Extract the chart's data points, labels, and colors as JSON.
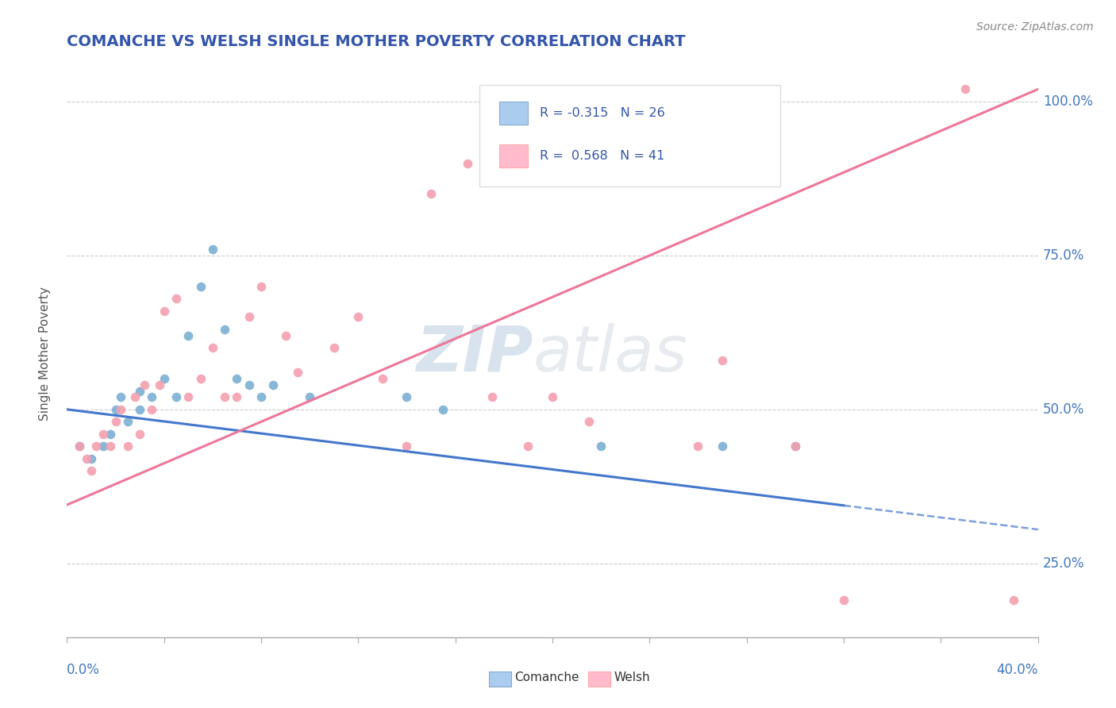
{
  "title": "COMANCHE VS WELSH SINGLE MOTHER POVERTY CORRELATION CHART",
  "source": "Source: ZipAtlas.com",
  "ylabel": "Single Mother Poverty",
  "xlim": [
    0.0,
    0.4
  ],
  "ylim": [
    0.13,
    1.05
  ],
  "y_ticks": [
    0.25,
    0.5,
    0.75,
    1.0
  ],
  "y_tick_labels": [
    "25.0%",
    "50.0%",
    "75.0%",
    "100.0%"
  ],
  "comanche_color": "#7BAFD4",
  "welsh_color": "#F4A0B0",
  "comanche_line_color": "#4477CC",
  "welsh_line_color": "#EE7799",
  "legend_bg": "#FFFFFF",
  "legend_edge": "#DDDDDD",
  "legend_box_comanche": "#AACCEE",
  "legend_box_welsh": "#FFBBCC",
  "R_comanche": -0.315,
  "N_comanche": 26,
  "R_welsh": 0.568,
  "N_welsh": 41,
  "comanche_scatter": [
    [
      0.005,
      0.44
    ],
    [
      0.01,
      0.42
    ],
    [
      0.015,
      0.44
    ],
    [
      0.018,
      0.46
    ],
    [
      0.02,
      0.5
    ],
    [
      0.022,
      0.52
    ],
    [
      0.025,
      0.48
    ],
    [
      0.03,
      0.5
    ],
    [
      0.03,
      0.53
    ],
    [
      0.035,
      0.52
    ],
    [
      0.04,
      0.55
    ],
    [
      0.045,
      0.52
    ],
    [
      0.05,
      0.62
    ],
    [
      0.055,
      0.7
    ],
    [
      0.06,
      0.76
    ],
    [
      0.065,
      0.63
    ],
    [
      0.07,
      0.55
    ],
    [
      0.075,
      0.54
    ],
    [
      0.08,
      0.52
    ],
    [
      0.085,
      0.54
    ],
    [
      0.1,
      0.52
    ],
    [
      0.14,
      0.52
    ],
    [
      0.155,
      0.5
    ],
    [
      0.22,
      0.44
    ],
    [
      0.27,
      0.44
    ],
    [
      0.3,
      0.44
    ]
  ],
  "welsh_scatter": [
    [
      0.005,
      0.44
    ],
    [
      0.008,
      0.42
    ],
    [
      0.01,
      0.4
    ],
    [
      0.012,
      0.44
    ],
    [
      0.015,
      0.46
    ],
    [
      0.018,
      0.44
    ],
    [
      0.02,
      0.48
    ],
    [
      0.022,
      0.5
    ],
    [
      0.025,
      0.44
    ],
    [
      0.028,
      0.52
    ],
    [
      0.03,
      0.46
    ],
    [
      0.032,
      0.54
    ],
    [
      0.035,
      0.5
    ],
    [
      0.038,
      0.54
    ],
    [
      0.04,
      0.66
    ],
    [
      0.045,
      0.68
    ],
    [
      0.05,
      0.52
    ],
    [
      0.055,
      0.55
    ],
    [
      0.06,
      0.6
    ],
    [
      0.065,
      0.52
    ],
    [
      0.07,
      0.52
    ],
    [
      0.075,
      0.65
    ],
    [
      0.08,
      0.7
    ],
    [
      0.09,
      0.62
    ],
    [
      0.095,
      0.56
    ],
    [
      0.11,
      0.6
    ],
    [
      0.12,
      0.65
    ],
    [
      0.13,
      0.55
    ],
    [
      0.14,
      0.44
    ],
    [
      0.15,
      0.85
    ],
    [
      0.165,
      0.9
    ],
    [
      0.175,
      0.52
    ],
    [
      0.19,
      0.44
    ],
    [
      0.2,
      0.52
    ],
    [
      0.215,
      0.48
    ],
    [
      0.26,
      0.44
    ],
    [
      0.27,
      0.58
    ],
    [
      0.3,
      0.44
    ],
    [
      0.32,
      0.19
    ],
    [
      0.37,
      1.02
    ],
    [
      0.39,
      0.19
    ]
  ],
  "watermark_zip": "ZIP",
  "watermark_atlas": "atlas",
  "background_color": "#FFFFFF",
  "grid_color": "#CCCCCC",
  "title_color": "#3355AA",
  "source_color": "#888888",
  "tick_label_color": "#4477BB",
  "ylabel_color": "#555555"
}
